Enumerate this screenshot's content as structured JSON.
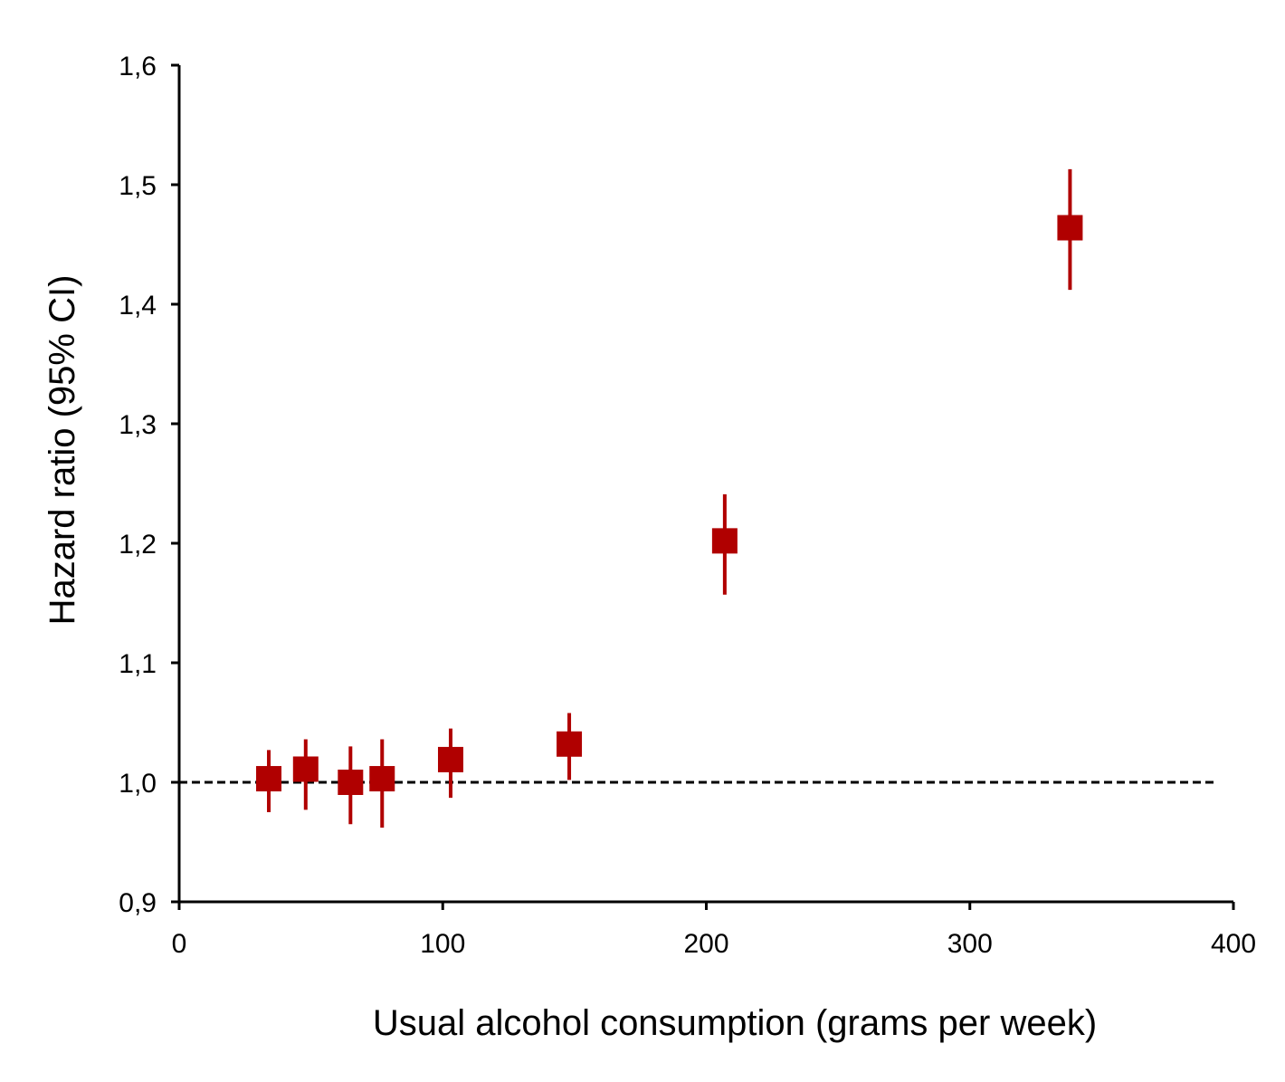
{
  "chart_data": {
    "type": "scatter",
    "title": "",
    "xlabel": "Usual alcohol consumption (grams per week)",
    "ylabel": "Hazard ratio (95% CI)",
    "xlim": [
      0,
      400
    ],
    "ylim": [
      0.9,
      1.6
    ],
    "x_ticks": [
      0,
      100,
      200,
      300,
      400
    ],
    "x_tick_labels": [
      "0",
      "100",
      "200",
      "300",
      "400"
    ],
    "y_ticks": [
      0.9,
      1.0,
      1.1,
      1.2,
      1.3,
      1.4,
      1.5,
      1.6
    ],
    "y_tick_labels": [
      "0,9",
      "1,0",
      "1,1",
      "1,2",
      "1,3",
      "1,4",
      "1,5",
      "1,6"
    ],
    "grid": false,
    "legend": "none",
    "reference_line": {
      "y": 1.0,
      "style": "dashed"
    },
    "marker": "square",
    "color": "#b00000",
    "points": [
      {
        "x": 34,
        "y": 1.003,
        "lower": 0.975,
        "upper": 1.027
      },
      {
        "x": 48,
        "y": 1.011,
        "lower": 0.977,
        "upper": 1.036
      },
      {
        "x": 65,
        "y": 1.0,
        "lower": 0.965,
        "upper": 1.03
      },
      {
        "x": 77,
        "y": 1.003,
        "lower": 0.962,
        "upper": 1.036
      },
      {
        "x": 103,
        "y": 1.019,
        "lower": 0.987,
        "upper": 1.045
      },
      {
        "x": 148,
        "y": 1.032,
        "lower": 1.002,
        "upper": 1.058
      },
      {
        "x": 207,
        "y": 1.202,
        "lower": 1.157,
        "upper": 1.241
      },
      {
        "x": 338,
        "y": 1.464,
        "lower": 1.412,
        "upper": 1.513
      }
    ]
  }
}
